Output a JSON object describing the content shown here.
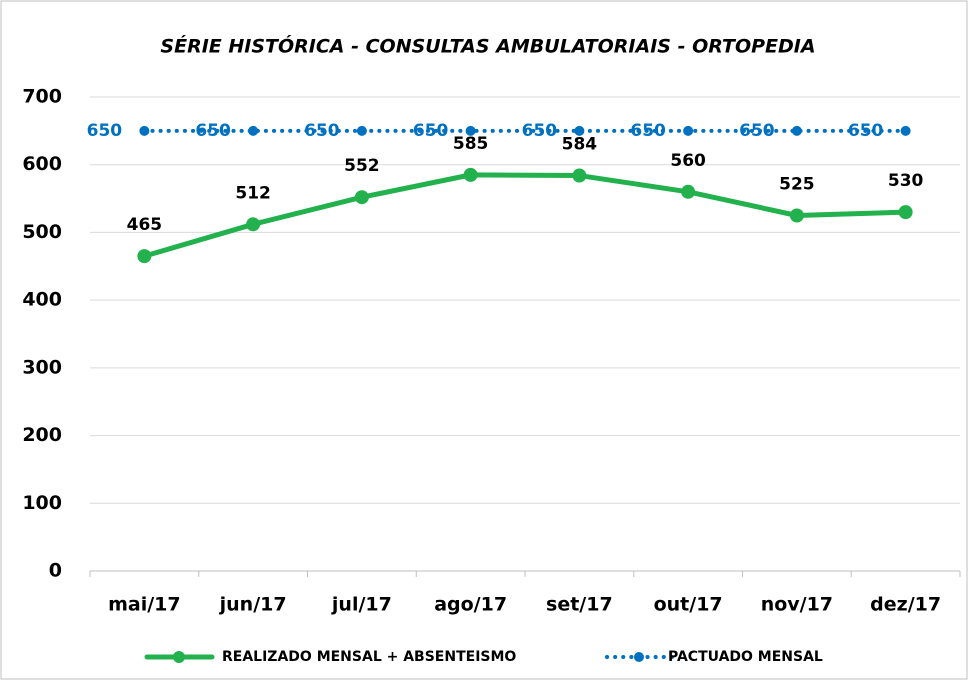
{
  "chart_data": {
    "type": "line",
    "title": "SÉRIE HISTÓRICA - CONSULTAS AMBULATORIAIS - ORTOPEDIA",
    "categories": [
      "mai/17",
      "jun/17",
      "jul/17",
      "ago/17",
      "set/17",
      "out/17",
      "nov/17",
      "dez/17"
    ],
    "series": [
      {
        "name": "REALIZADO MENSAL + ABSENTEISMO",
        "color": "#22b14c",
        "values": [
          465,
          512,
          552,
          585,
          584,
          560,
          525,
          530
        ]
      },
      {
        "name": "PACTUADO MENSAL",
        "color": "#0070c0",
        "values": [
          650,
          650,
          650,
          650,
          650,
          650,
          650,
          650
        ]
      }
    ],
    "ylim": [
      0,
      700
    ],
    "yticks": [
      0,
      100,
      200,
      300,
      400,
      500,
      600,
      700
    ],
    "grid": true,
    "legend": "bottom"
  }
}
